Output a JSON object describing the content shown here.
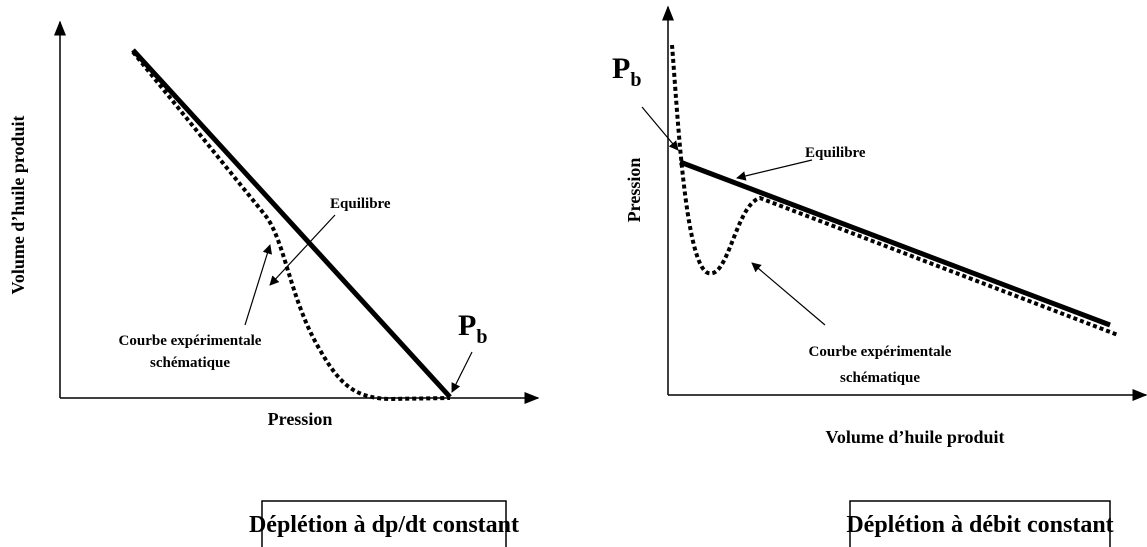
{
  "left_panel": {
    "y_axis_label": "Volume d’huile produit",
    "x_axis_label": "Pression",
    "equilibrium_label": "Equilibre",
    "curve_label": [
      "Courbe expérimentale",
      "schématique"
    ],
    "bubble_point": {
      "label": "P",
      "subscript": "b"
    },
    "caption": "Déplétion à dp/dt constant"
  },
  "right_panel": {
    "y_axis_label": "Pression",
    "x_axis_label": "Volume d’huile produit",
    "equilibrium_label": "Equilibre",
    "curve_label": [
      "Courbe expérimentale",
      "schématique"
    ],
    "bubble_point": {
      "label": "P",
      "subscript": "b"
    },
    "caption": "Déplétion à débit constant"
  }
}
